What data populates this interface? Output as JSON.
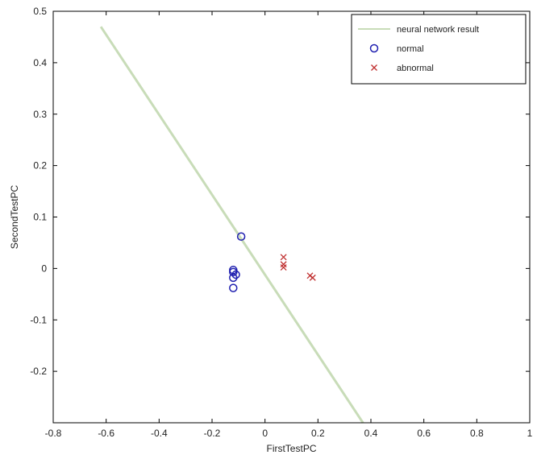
{
  "chart_data": {
    "type": "scatter",
    "title": "",
    "xlabel": "FirstTestPC",
    "ylabel": "SecondTestPC",
    "xlim": [
      -0.8,
      1.0
    ],
    "ylim": [
      -0.3,
      0.5
    ],
    "grid": false,
    "legend_position": "top-right",
    "x_ticks": [
      -0.8,
      -0.6,
      -0.4,
      -0.2,
      0,
      0.2,
      0.4,
      0.6,
      0.8,
      1
    ],
    "x_tick_labels": [
      "-0.8",
      "-0.6",
      "-0.4",
      "-0.2",
      "0",
      "0.2",
      "0.4",
      "0.6",
      "0.8",
      "1"
    ],
    "y_ticks": [
      -0.2,
      -0.1,
      0,
      0.1,
      0.2,
      0.3,
      0.4,
      0.5
    ],
    "y_tick_labels": [
      "-0.2",
      "-0.1",
      "0",
      "0.1",
      "0.2",
      "0.3",
      "0.4",
      "0.5"
    ],
    "series": [
      {
        "name": "neural network result",
        "kind": "line",
        "color": "#c8dcb8",
        "x": [
          -0.62,
          0.37
        ],
        "y": [
          0.47,
          -0.3
        ]
      },
      {
        "name": "normal",
        "kind": "marker-circle",
        "color": "#2020b0",
        "x": [
          -0.09,
          -0.12,
          -0.12,
          -0.11,
          -0.12,
          -0.12
        ],
        "y": [
          0.062,
          -0.003,
          -0.007,
          -0.012,
          -0.018,
          -0.038
        ]
      },
      {
        "name": "abnormal",
        "kind": "marker-x",
        "color": "#c03030",
        "x": [
          0.07,
          0.07,
          0.07,
          0.17,
          0.18
        ],
        "y": [
          0.022,
          0.008,
          0.002,
          -0.014,
          -0.018
        ]
      }
    ]
  }
}
